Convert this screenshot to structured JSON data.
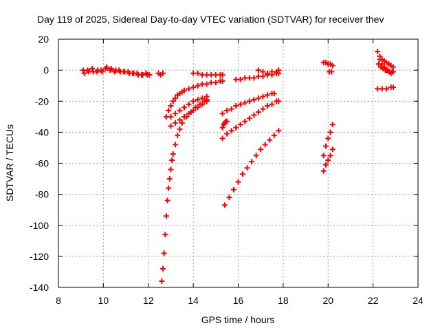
{
  "chart_data": {
    "type": "scatter",
    "title": "Day 119 of 2025, Sidereal Day-to-day VTEC variation (SDTVAR) for receiver thev",
    "xlabel": "GPS time / hours",
    "ylabel": "SDTVAR / TECUs",
    "xlim": [
      8,
      24
    ],
    "ylim": [
      -140,
      20
    ],
    "xticks": [
      8,
      10,
      12,
      14,
      16,
      18,
      20,
      22,
      24
    ],
    "yticks": [
      20,
      0,
      -20,
      -40,
      -60,
      -80,
      -100,
      -120,
      -140
    ],
    "grid": true,
    "marker": "+",
    "color": "#ff0000",
    "series": [
      {
        "name": "s1",
        "x": [
          9.1,
          9.3,
          9.5,
          9.7,
          9.9,
          10.1,
          10.3,
          10.5,
          10.7,
          10.9,
          11.1,
          11.3,
          11.5,
          11.7,
          11.9,
          12.05
        ],
        "y": [
          0,
          0,
          1,
          -1,
          0,
          1,
          0,
          -1,
          0,
          -1,
          -1,
          -2,
          -2,
          -3,
          -2,
          -3
        ]
      },
      {
        "name": "s2",
        "x": [
          9.15,
          9.35,
          9.55,
          9.75,
          9.95,
          10.15,
          10.35,
          10.55,
          10.75,
          10.95,
          11.15,
          11.35,
          11.55,
          11.75,
          11.95
        ],
        "y": [
          -2,
          -1,
          -1,
          0,
          -1,
          2,
          1,
          0,
          -1,
          -1,
          -2,
          -2,
          -3,
          -3,
          -3
        ]
      },
      {
        "name": "s3",
        "x": [
          12.45,
          12.55,
          12.65
        ],
        "y": [
          -2,
          -3,
          -2
        ]
      },
      {
        "name": "s4",
        "x": [
          14.0,
          14.2,
          14.4,
          14.6,
          14.8,
          15.0,
          15.2,
          15.3
        ],
        "y": [
          -2,
          -2,
          -3,
          -3,
          -3,
          -3,
          -3,
          -3
        ]
      },
      {
        "name": "s5",
        "x": [
          15.9,
          16.1,
          16.3,
          16.5,
          16.7,
          16.9,
          17.1,
          17.3,
          17.5,
          17.7,
          17.8
        ],
        "y": [
          -6,
          -6,
          -5,
          -5,
          -5,
          -4,
          -4,
          -3,
          -3,
          -2,
          -2
        ]
      },
      {
        "name": "s6",
        "x": [
          16.9,
          17.1,
          17.3,
          17.5,
          17.7,
          17.8
        ],
        "y": [
          0,
          -1,
          -2,
          -1,
          -1,
          0
        ]
      },
      {
        "name": "s7",
        "x": [
          12.8,
          12.9,
          13.0,
          13.1,
          13.2,
          13.3,
          13.4,
          13.5,
          13.6,
          13.8,
          14.0,
          14.2,
          14.4,
          14.6,
          14.8,
          15.0,
          15.2,
          15.3
        ],
        "y": [
          -30,
          -26,
          -23,
          -20,
          -18,
          -16,
          -15,
          -14,
          -13,
          -12,
          -11,
          -10,
          -9,
          -9,
          -8,
          -8,
          -7,
          -7
        ]
      },
      {
        "name": "s8",
        "x": [
          13.0,
          13.2,
          13.4,
          13.6,
          13.8,
          14.0,
          14.2,
          14.4,
          14.6
        ],
        "y": [
          -30,
          -28,
          -26,
          -24,
          -22,
          -20,
          -19,
          -18,
          -17
        ]
      },
      {
        "name": "s9",
        "x": [
          12.6,
          12.65,
          12.7,
          12.75,
          12.8,
          12.85,
          12.9,
          12.95,
          13.0,
          13.05,
          13.1,
          13.2,
          13.3,
          13.4,
          13.5,
          13.7,
          13.9,
          14.1,
          14.3,
          14.5,
          14.6
        ],
        "y": [
          -136,
          -128,
          -118,
          -106,
          -94,
          -84,
          -76,
          -70,
          -64,
          -58,
          -54,
          -48,
          -42,
          -38,
          -34,
          -30,
          -27,
          -24,
          -22,
          -20,
          -19
        ]
      },
      {
        "name": "s10",
        "x": [
          13.0,
          13.2,
          13.4,
          13.6,
          13.8,
          14.0,
          14.2,
          14.4,
          14.6
        ],
        "y": [
          -36,
          -34,
          -32,
          -30,
          -28,
          -26,
          -24,
          -22,
          -20
        ]
      },
      {
        "name": "s11",
        "x": [
          15.3,
          15.5,
          15.7,
          15.9,
          16.1,
          16.3,
          16.5,
          16.7,
          16.9,
          17.1,
          17.3,
          17.5,
          17.7,
          17.8
        ],
        "y": [
          -44,
          -41,
          -39,
          -37,
          -35,
          -33,
          -31,
          -29,
          -27,
          -25,
          -23,
          -22,
          -20,
          -20
        ]
      },
      {
        "name": "s12",
        "x": [
          15.3,
          15.5,
          15.7,
          15.9,
          16.1,
          16.3,
          16.5,
          16.7,
          16.9,
          17.1,
          17.3,
          17.5,
          17.6
        ],
        "y": [
          -28,
          -26,
          -25,
          -23,
          -22,
          -21,
          -20,
          -19,
          -18,
          -17,
          -16,
          -15,
          -15
        ]
      },
      {
        "name": "s13",
        "x": [
          15.3,
          15.35,
          15.4,
          15.45,
          15.5
        ],
        "y": [
          -37,
          -35,
          -34,
          -33,
          -33
        ]
      },
      {
        "name": "s14",
        "x": [
          15.4,
          15.6,
          15.8,
          16.0,
          16.2,
          16.4,
          16.6,
          16.8,
          17.0,
          17.2,
          17.4,
          17.6,
          17.8
        ],
        "y": [
          -87,
          -82,
          -77,
          -72,
          -67,
          -63,
          -59,
          -55,
          -51,
          -48,
          -45,
          -42,
          -39
        ]
      },
      {
        "name": "s15",
        "x": [
          19.8,
          19.9,
          20.0,
          20.1,
          20.2
        ],
        "y": [
          -65,
          -61,
          -58,
          -55,
          -51
        ]
      },
      {
        "name": "s16",
        "x": [
          19.8,
          19.9,
          20.0,
          20.1,
          20.2
        ],
        "y": [
          -55,
          -49,
          -44,
          -40,
          -35
        ]
      },
      {
        "name": "s17",
        "x": [
          19.8,
          19.9,
          20.0,
          20.1,
          20.2
        ],
        "y": [
          5,
          5,
          4,
          4,
          3
        ]
      },
      {
        "name": "s18",
        "x": [
          20.05,
          20.15
        ],
        "y": [
          -1,
          -1
        ]
      },
      {
        "name": "s19",
        "x": [
          22.2,
          22.3,
          22.4,
          22.5,
          22.6,
          22.7,
          22.8,
          22.9
        ],
        "y": [
          12,
          9,
          7,
          6,
          5,
          4,
          3,
          2
        ]
      },
      {
        "name": "s20",
        "x": [
          22.25,
          22.35,
          22.45,
          22.55,
          22.65,
          22.75,
          22.85
        ],
        "y": [
          4,
          2,
          1,
          0,
          0,
          -1,
          -1
        ]
      },
      {
        "name": "s21",
        "x": [
          22.3,
          22.4,
          22.5,
          22.6,
          22.7,
          22.8,
          22.9
        ],
        "y": [
          7,
          4,
          2,
          0,
          -1,
          -2,
          -1
        ]
      },
      {
        "name": "s22",
        "x": [
          22.2,
          22.4,
          22.6,
          22.8,
          22.9
        ],
        "y": [
          -12,
          -12,
          -12,
          -11,
          -11
        ]
      }
    ]
  }
}
